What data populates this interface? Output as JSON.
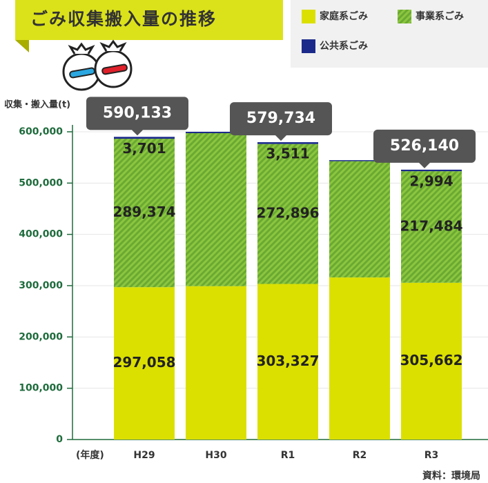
{
  "chart_data": {
    "type": "stacked_bar",
    "title": "ごみ収集搬入量の推移",
    "y_label": "収集・搬入量(t)",
    "x_label": "(年度)",
    "source": "資料：環境局",
    "categories": [
      "H29",
      "H30",
      "R1",
      "R2",
      "R3"
    ],
    "series": [
      {
        "name": "家庭系ごみ",
        "color": "#dbe000",
        "values": [
          297058,
          299000,
          303327,
          316000,
          305662
        ],
        "value_labels": [
          "297,058",
          null,
          "303,327",
          null,
          "305,662"
        ]
      },
      {
        "name": "事業系ごみ",
        "color": "#7dbb3c",
        "values": [
          289374,
          298300,
          272896,
          226700,
          217484
        ],
        "value_labels": [
          "289,374",
          null,
          "272,896",
          null,
          "217,484"
        ]
      },
      {
        "name": "公共系ごみ",
        "color": "#1b2a8a",
        "values": [
          3701,
          2700,
          3511,
          2000,
          2994
        ],
        "value_labels": [
          "3,701",
          null,
          "3,511",
          null,
          "2,994"
        ]
      }
    ],
    "totals": [
      590133,
      null,
      579734,
      null,
      526140
    ],
    "total_labels": [
      "590,133",
      null,
      "579,734",
      null,
      "526,140"
    ],
    "ylim": [
      0,
      600000
    ],
    "yticks": [
      0,
      {
        "value": 100000,
        "label": "100,000"
      },
      {
        "value": 200000,
        "label": "200,000"
      },
      {
        "value": 300000,
        "label": "300,000"
      },
      {
        "value": 400000,
        "label": "400,000"
      },
      {
        "value": 500000,
        "label": "500,000"
      },
      {
        "value": 600000,
        "label": "600,000"
      }
    ],
    "grid": true
  }
}
